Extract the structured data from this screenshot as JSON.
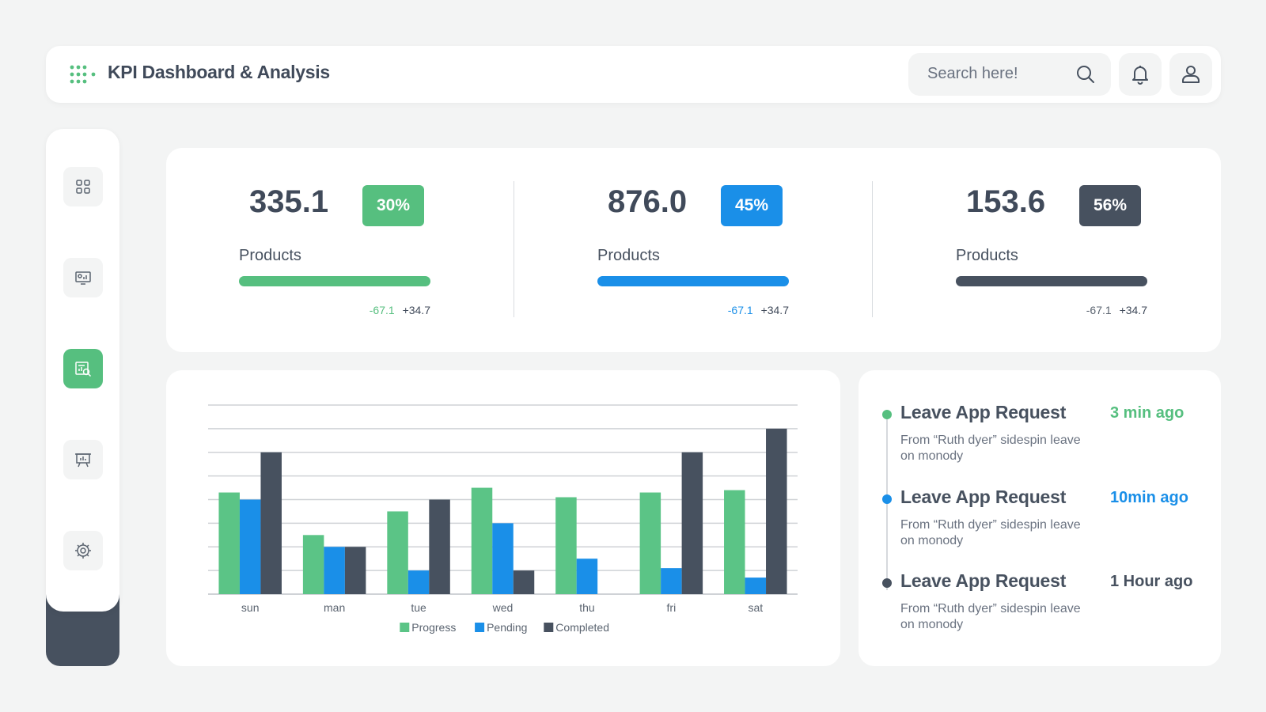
{
  "header": {
    "title": "KPI Dashboard & Analysis",
    "search_placeholder": "Search here!"
  },
  "sidebar": {
    "items": [
      {
        "icon": "grid-icon",
        "active": false
      },
      {
        "icon": "monitor-chart-icon",
        "active": false
      },
      {
        "icon": "report-analysis-icon",
        "active": true
      },
      {
        "icon": "presentation-board-icon",
        "active": false
      },
      {
        "icon": "settings-gear-icon",
        "active": false
      }
    ]
  },
  "kpis": [
    {
      "value": "335.1",
      "badge": "30%",
      "label": "Products",
      "neg": "-67.1",
      "pos": "+34.7",
      "color": "#56bf7f",
      "progress": 1.0
    },
    {
      "value": "876.0",
      "badge": "45%",
      "label": "Products",
      "neg": "-67.1",
      "pos": "+34.7",
      "color": "#1a8fe8",
      "progress": 1.0
    },
    {
      "value": "153.6",
      "badge": "56%",
      "label": "Products",
      "neg": "-67.1",
      "pos": "+34.7",
      "color": "#47515f",
      "progress": 1.0
    }
  ],
  "activity": {
    "items": [
      {
        "title": "Leave App Request",
        "time": "3 min ago",
        "desc": "From “Ruth dyer” sidespin leave on monody",
        "color": "#56bf7f"
      },
      {
        "title": "Leave App Request",
        "time": "10min ago",
        "desc": "From “Ruth dyer” sidespin leave on monody",
        "color": "#1a8fe8"
      },
      {
        "title": "Leave App Request",
        "time": "1 Hour ago",
        "desc": "From “Ruth dyer” sidespin leave on monody",
        "color": "#47515f"
      }
    ]
  },
  "chart_data": {
    "type": "bar",
    "categories": [
      "sun",
      "man",
      "tue",
      "wed",
      "thu",
      "fri",
      "sat"
    ],
    "series": [
      {
        "name": "Progress",
        "values": [
          4.3,
          2.5,
          3.5,
          4.5,
          4.1,
          4.3,
          4.4
        ],
        "color": "#5bc486"
      },
      {
        "name": "Pending",
        "values": [
          4.0,
          2.0,
          1.0,
          3.0,
          1.5,
          1.1,
          0.7
        ],
        "color": "#1a8fe8"
      },
      {
        "name": "Completed",
        "values": [
          6.0,
          2.0,
          4.0,
          1.0,
          0,
          6.0,
          7.0
        ],
        "color": "#47515f"
      }
    ],
    "ylim": [
      0,
      8
    ],
    "grid": true,
    "legend": "bottom",
    "title": "",
    "xlabel": "",
    "ylabel": ""
  }
}
